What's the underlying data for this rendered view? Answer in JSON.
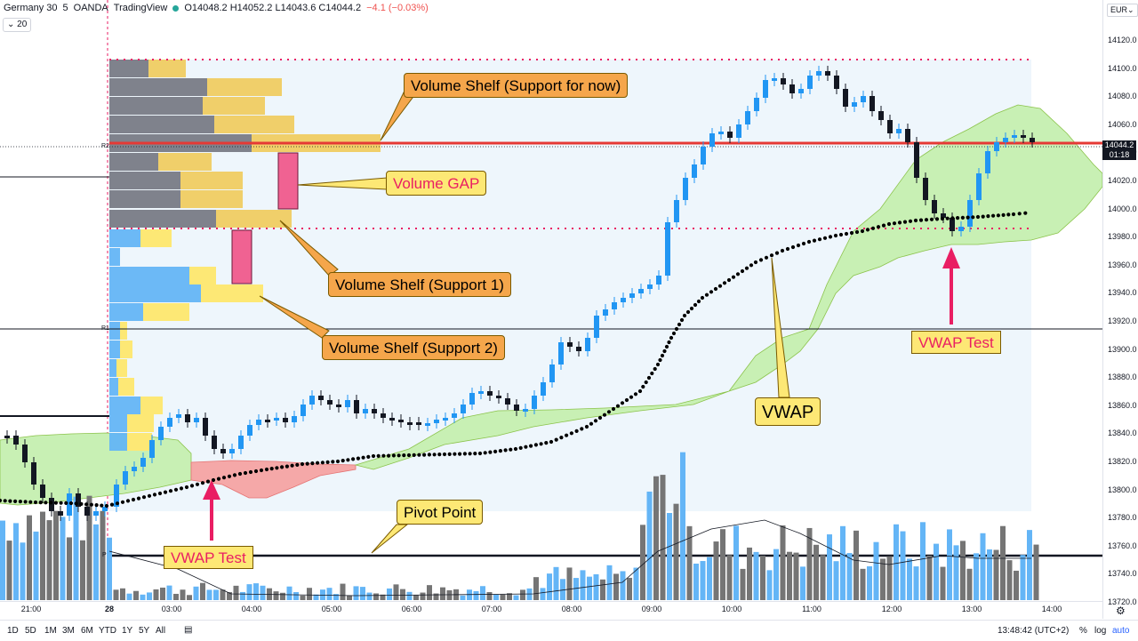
{
  "header": {
    "symbol": "Germany 30",
    "interval": "5",
    "broker": "OANDA",
    "platform": "TradingView",
    "ohlc": "O14048.2 H14052.2 L14043.6 C14044.2",
    "change": "−4.1 (−0.03%)",
    "interval_dropdown": "20"
  },
  "price_axis": {
    "currency": "EUR",
    "ticks": [
      "14120.0",
      "14100.0",
      "14080.0",
      "14060.0",
      "14040.0",
      "14020.0",
      "14000.0",
      "13980.0",
      "13960.0",
      "13940.0",
      "13920.0",
      "13900.0",
      "13880.0",
      "13860.0",
      "13840.0",
      "13820.0",
      "13800.0",
      "13780.0",
      "13760.0",
      "13740.0",
      "13720.0"
    ],
    "last_price": "14044.2",
    "countdown": "01:18"
  },
  "time_axis": {
    "ticks": [
      "21:00",
      "28",
      "03:00",
      "04:00",
      "05:00",
      "06:00",
      "07:00",
      "08:00",
      "09:00",
      "10:00",
      "11:00",
      "12:00",
      "13:00",
      "14:00"
    ]
  },
  "levels": {
    "r2": "R2",
    "r1": "R1",
    "p": "P"
  },
  "annotations": {
    "volume_shelf_now": "Volume Shelf (Support for now)",
    "volume_gap": "Volume GAP",
    "volume_shelf_1": "Volume Shelf (Support 1)",
    "volume_shelf_2": "Volume Shelf (Support 2)",
    "vwap": "VWAP",
    "vwap_test_right": "VWAP Test",
    "vwap_test_left": "VWAP Test",
    "pivot_point": "Pivot Point"
  },
  "bottom_bar": {
    "ranges": [
      "1D",
      "5D",
      "1M",
      "3M",
      "6M",
      "YTD",
      "1Y",
      "5Y",
      "All"
    ],
    "clock": "13:48:42 (UTC+2)",
    "percent": "%",
    "log": "log",
    "auto": "auto"
  },
  "colors": {
    "up": "#2196f3",
    "down": "#131722",
    "cloud_green": "#c8f0b4",
    "cloud_red": "#f5a8a8",
    "volume_up": "#64b5f6",
    "volume_down": "#757575",
    "accent_red": "#e91e63"
  }
}
